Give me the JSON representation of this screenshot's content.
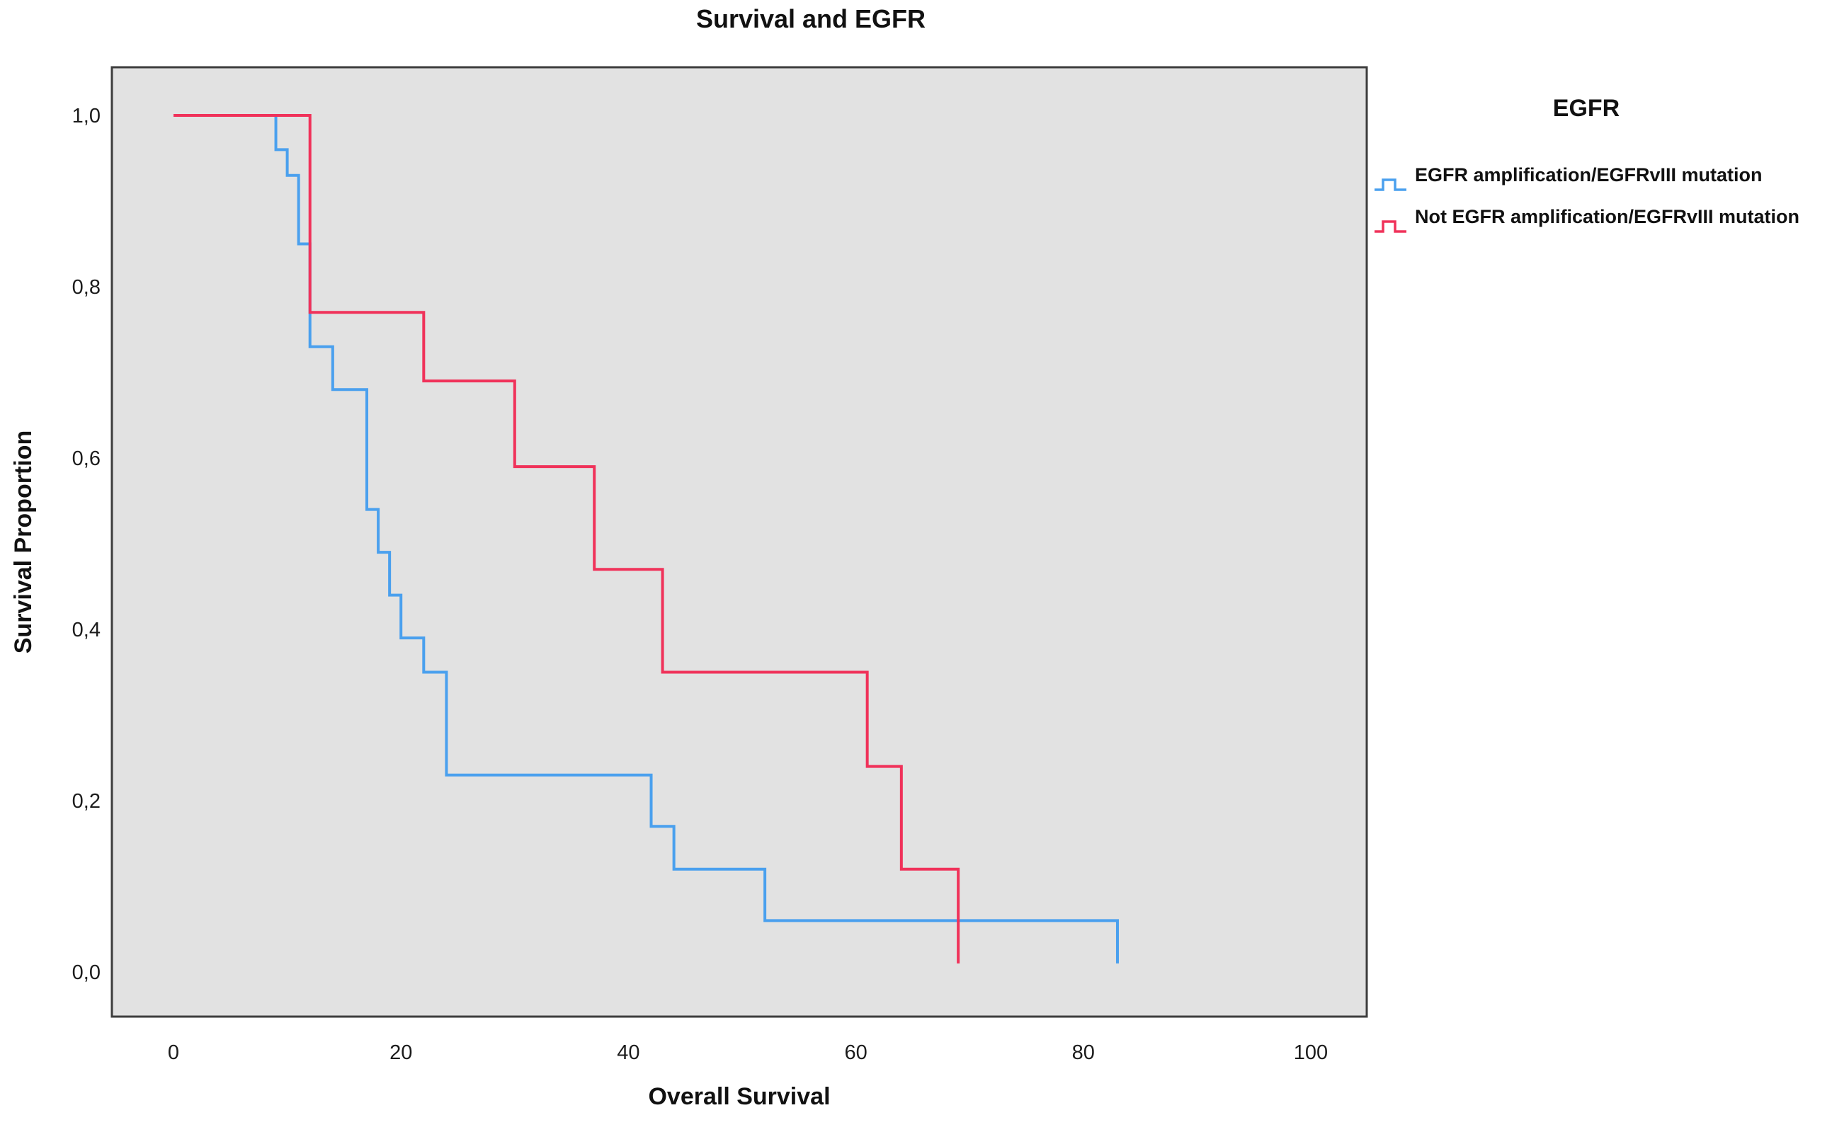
{
  "title": "Survival and EGFR",
  "axes": {
    "x": {
      "label": "Overall Survival",
      "ticks": [
        "0",
        "20",
        "40",
        "60",
        "80",
        "100"
      ],
      "tick_values": [
        0,
        20,
        40,
        60,
        80,
        100
      ],
      "range": [
        0,
        105
      ]
    },
    "y": {
      "label": "Survival Proportion",
      "ticks": [
        "1,0",
        "0,8",
        "0,6",
        "0,4",
        "0,2",
        "0,0"
      ],
      "tick_values": [
        1.0,
        0.8,
        0.6,
        0.4,
        0.2,
        0.0
      ],
      "range": [
        0,
        1
      ]
    }
  },
  "legend": {
    "title": "EGFR",
    "entries": [
      {
        "label": "EGFR amplification/EGFRvIII mutation",
        "color": "#4aa0ee"
      },
      {
        "label": "Not EGFR amplification/EGFRvIII mutation",
        "color": "#f0325a"
      }
    ]
  },
  "chart_data": {
    "type": "line",
    "subtype": "kaplan-meier-step",
    "title": "Survival and EGFR",
    "xlabel": "Overall Survival",
    "ylabel": "Survival Proportion",
    "xlim": [
      0,
      105
    ],
    "ylim": [
      0.0,
      1.0
    ],
    "grid": false,
    "legend_position": "right",
    "plot_bg": "#e2e2e2",
    "border_color": "#3d3d3d",
    "series": [
      {
        "name": "EGFR amplification/EGFRvIII mutation",
        "color": "#4aa0ee",
        "start": [
          0,
          1.0
        ],
        "steps": [
          [
            9,
            0.96
          ],
          [
            10,
            0.93
          ],
          [
            11,
            0.85
          ],
          [
            12,
            0.73
          ],
          [
            14,
            0.68
          ],
          [
            17,
            0.54
          ],
          [
            18,
            0.49
          ],
          [
            19,
            0.44
          ],
          [
            20,
            0.39
          ],
          [
            22,
            0.35
          ],
          [
            24,
            0.23
          ],
          [
            42,
            0.17
          ],
          [
            44,
            0.12
          ],
          [
            52,
            0.06
          ],
          [
            83,
            0.01
          ]
        ]
      },
      {
        "name": "Not EGFR amplification/EGFRvIII mutation",
        "color": "#f0325a",
        "start": [
          0,
          1.0
        ],
        "steps": [
          [
            12,
            0.77
          ],
          [
            22,
            0.69
          ],
          [
            30,
            0.59
          ],
          [
            37,
            0.47
          ],
          [
            43,
            0.35
          ],
          [
            61,
            0.24
          ],
          [
            64,
            0.12
          ],
          [
            69,
            0.01
          ]
        ]
      }
    ]
  }
}
